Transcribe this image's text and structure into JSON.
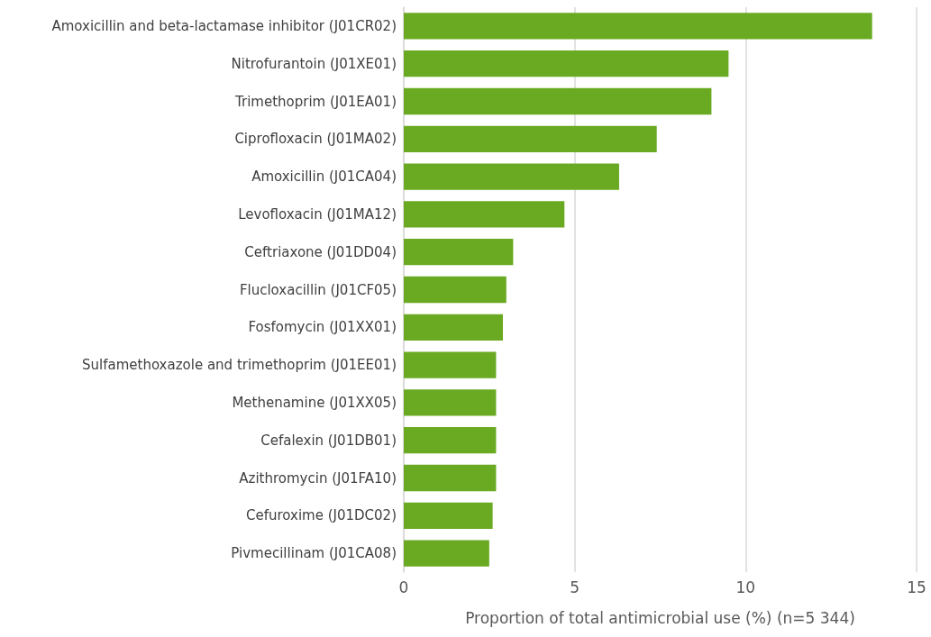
{
  "chart_data": {
    "type": "bar",
    "orientation": "horizontal",
    "xlabel": "Proportion of total antimicrobial use (%) (n=5 344)",
    "categories": [
      "Amoxicillin and beta-lactamase inhibitor (J01CR02)",
      "Nitrofurantoin (J01XE01)",
      "Trimethoprim (J01EA01)",
      "Ciprofloxacin (J01MA02)",
      "Amoxicillin (J01CA04)",
      "Levofloxacin (J01MA12)",
      "Ceftriaxone (J01DD04)",
      "Flucloxacillin (J01CF05)",
      "Fosfomycin (J01XX01)",
      "Sulfamethoxazole and trimethoprim (J01EE01)",
      "Methenamine (J01XX05)",
      "Cefalexin (J01DB01)",
      "Azithromycin (J01FA10)",
      "Cefuroxime (J01DC02)",
      "Pivmecillinam (J01CA08)"
    ],
    "values": [
      13.7,
      9.5,
      9.0,
      7.4,
      6.3,
      4.7,
      3.2,
      3.0,
      2.9,
      2.7,
      2.7,
      2.7,
      2.7,
      2.6,
      2.5
    ],
    "color": "#6aaa22",
    "xlim": [
      0,
      15
    ],
    "xticks": [
      0,
      5,
      10,
      15
    ],
    "grid": "x"
  }
}
